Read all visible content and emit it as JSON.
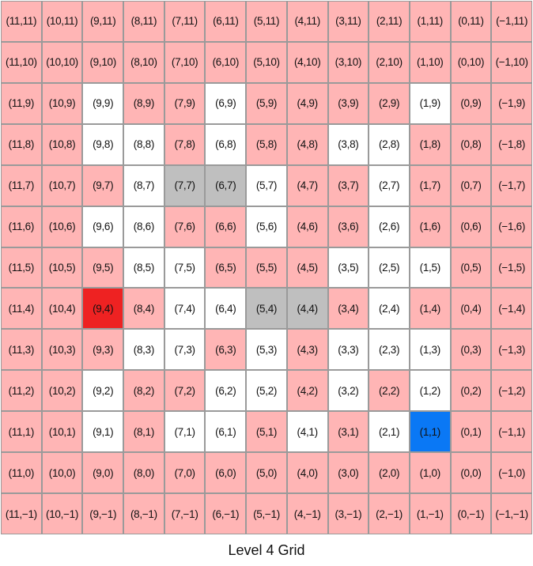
{
  "caption": "Level 4 Grid",
  "colors": {
    "P": "#ffb5b5",
    "W": "#ffffff",
    "G": "#bfbfbf",
    "R": "#ee2222",
    "B": "#0a78f5"
  },
  "grid": {
    "columns": [
      "11",
      "10",
      "9",
      "8",
      "7",
      "6",
      "5",
      "4",
      "3",
      "2",
      "1",
      "0",
      "−1"
    ],
    "rows": [
      "11",
      "10",
      "9",
      "8",
      "7",
      "6",
      "5",
      "4",
      "3",
      "2",
      "1",
      "0",
      "−1"
    ],
    "color_rows": [
      "PPPPPPPPPPPPP",
      "PPPPPPPPPPPPP",
      "PPWPPWPPPPWPP",
      "PPWWPWPPWWPPP",
      "PPPWGGWPPWPPP",
      "PPWWPPWPPWPPP",
      "PPPWWPPPWWWPP",
      "PPRPWWGGPWPPP",
      "PPPWWPWPWWWPP",
      "PPWPPWWPWPWPP",
      "PPWPWWPWPWBPP",
      "PPPPPPPPPPPPP",
      "PPPPPPPPPPPPP"
    ]
  }
}
